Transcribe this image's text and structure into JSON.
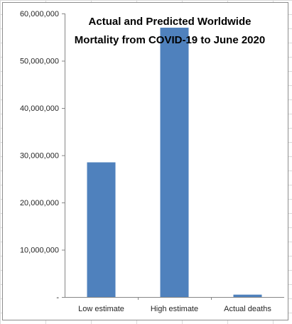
{
  "chart_data": {
    "type": "bar",
    "title_lines": [
      "Actual and Predicted Worldwide",
      "Mortality from COVID-19 to June 2020"
    ],
    "categories": [
      "Low estimate",
      "High estimate",
      "Actual deaths"
    ],
    "values": [
      28500000,
      57000000,
      500000
    ],
    "ylim": [
      0,
      60000000
    ],
    "yticks": [
      0,
      10000000,
      20000000,
      30000000,
      40000000,
      50000000,
      60000000
    ],
    "ytick_labels": [
      "-",
      "10,000,000",
      "20,000,000",
      "30,000,000",
      "40,000,000",
      "50,000,000",
      "60,000,000"
    ],
    "bar_color": "#4f81bd",
    "gridlines": false,
    "legend": "none"
  }
}
